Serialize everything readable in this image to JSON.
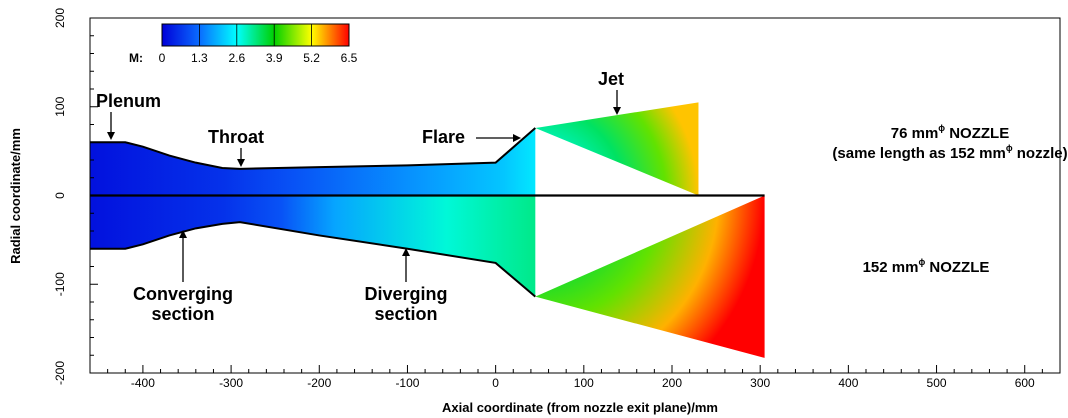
{
  "chart_data": {
    "type": "area",
    "xlabel": "Axial coordinate (from nozzle exit plane)/mm",
    "ylabel": "Radial coordinate/mm",
    "xlim": [
      -460,
      640
    ],
    "ylim": [
      -200,
      200
    ],
    "xticks": [
      -400,
      -300,
      -200,
      -100,
      0,
      100,
      200,
      300,
      400,
      500,
      600
    ],
    "yticks": [
      -200,
      -100,
      0,
      100,
      200
    ],
    "colorbar": {
      "label": "M:",
      "min": 0,
      "max": 6.5,
      "ticks": [
        "0",
        "1.3",
        "2.6",
        "3.9",
        "5.2",
        "6.5"
      ],
      "colors": [
        "#0000d8",
        "#0a6cff",
        "#00ffff",
        "#00d000",
        "#ffff00",
        "#ff0000"
      ]
    },
    "series": [
      {
        "name": "76 mm NOZZLE",
        "wall": [
          [
            -460,
            60
          ],
          [
            -420,
            60
          ],
          [
            -400,
            55
          ],
          [
            -370,
            45
          ],
          [
            -340,
            37
          ],
          [
            -310,
            31
          ],
          [
            -290,
            30
          ],
          [
            -200,
            32
          ],
          [
            -100,
            34
          ],
          [
            0,
            37
          ],
          [
            45,
            76
          ]
        ],
        "plume": [
          [
            45,
            76
          ],
          [
            230,
            105
          ],
          [
            230,
            0
          ]
        ],
        "mach_max": 5.5
      },
      {
        "name": "152 mm NOZZLE",
        "wall": [
          [
            -460,
            -60
          ],
          [
            -420,
            -60
          ],
          [
            -400,
            -55
          ],
          [
            -370,
            -45
          ],
          [
            -340,
            -37
          ],
          [
            -310,
            -32
          ],
          [
            -290,
            -30
          ],
          [
            -200,
            -45
          ],
          [
            -100,
            -60
          ],
          [
            0,
            -76
          ],
          [
            45,
            -114
          ]
        ],
        "plume": [
          [
            45,
            -114
          ],
          [
            305,
            -183
          ],
          [
            305,
            0
          ]
        ],
        "mach_max": 6.5
      }
    ]
  },
  "annotations": {
    "plenum": "Plenum",
    "throat": "Throat",
    "flare": "Flare",
    "jet": "Jet",
    "converging": [
      "Converging",
      "section"
    ],
    "diverging": [
      "Diverging",
      "section"
    ]
  },
  "notes": {
    "top_line1_pre": "76 mm",
    "top_line1_sup": "ϕ",
    "top_line1_post": " NOZZLE",
    "top_line2_pre": "(same length as 152 mm",
    "top_line2_sup": "ϕ",
    "top_line2_post": " nozzle)",
    "bottom_pre": "152 mm",
    "bottom_sup": "ϕ",
    "bottom_post": " NOZZLE"
  }
}
